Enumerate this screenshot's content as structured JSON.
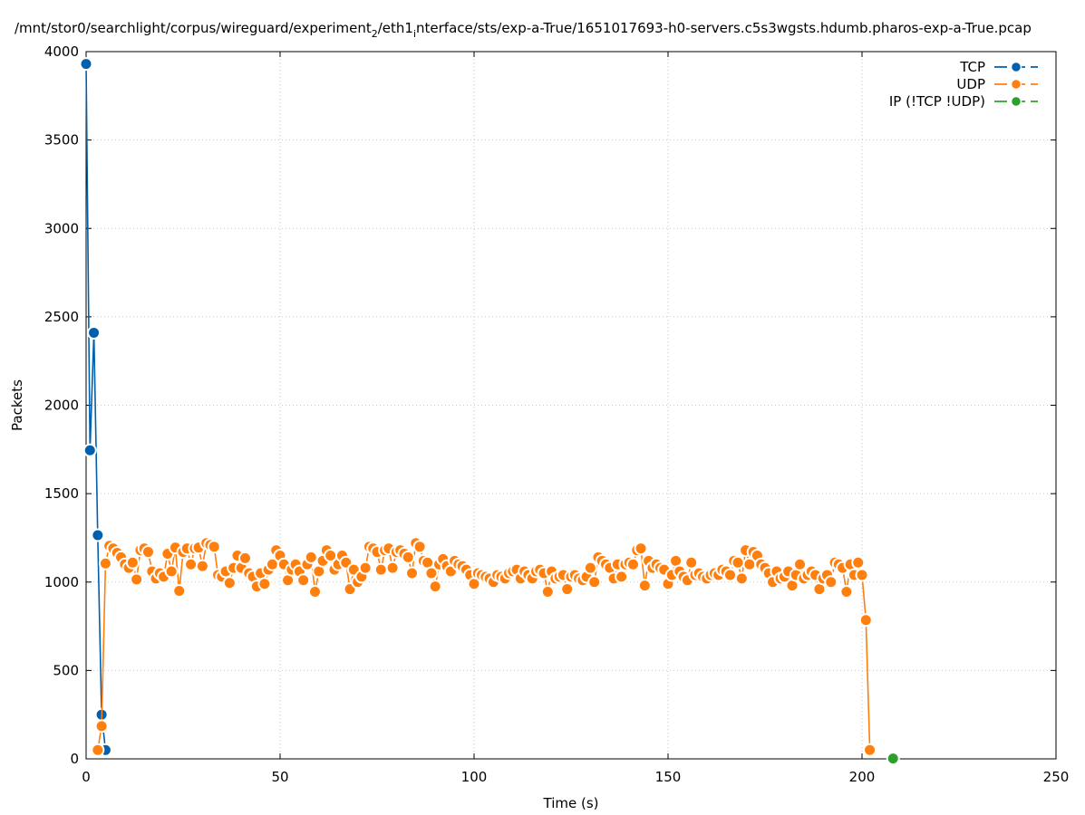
{
  "chart_data": {
    "type": "line",
    "title": "/mnt/stor0/searchlight/corpus/wireguard/experiment",
    "title_sub": "2",
    "title_mid": "/eth1",
    "title_sub2": "i",
    "title_rest": "nterface/sts/exp-a-True/1651017693-h0-servers.c5s3wgsts.hdumb.pharos-exp-a-True.pcap",
    "xlabel": "Time (s)",
    "ylabel": "Packets",
    "xlim": [
      0,
      250
    ],
    "ylim": [
      0,
      4000
    ],
    "xticks": [
      0,
      50,
      100,
      150,
      200,
      250
    ],
    "yticks": [
      0,
      500,
      1000,
      1500,
      2000,
      2500,
      3000,
      3500,
      4000
    ],
    "grid": true,
    "legend_position": "top-right",
    "series": [
      {
        "name": "TCP",
        "color": "#0060ad",
        "x": [
          0,
          1,
          2,
          3,
          4,
          5
        ],
        "y": [
          3930,
          1745,
          2410,
          1265,
          250,
          50
        ]
      },
      {
        "name": "UDP",
        "color": "#ff7f0e",
        "x": [
          3,
          4,
          5,
          6,
          7,
          8,
          9,
          10,
          11,
          12,
          13,
          14,
          15,
          16,
          17,
          18,
          19,
          20,
          21,
          22,
          23,
          24,
          25,
          26,
          27,
          28,
          29,
          30,
          31,
          32,
          33,
          34,
          35,
          36,
          37,
          38,
          39,
          40,
          41,
          42,
          43,
          44,
          45,
          46,
          47,
          48,
          49,
          50,
          51,
          52,
          53,
          54,
          55,
          56,
          57,
          58,
          59,
          60,
          61,
          62,
          63,
          64,
          65,
          66,
          67,
          68,
          69,
          70,
          71,
          72,
          73,
          74,
          75,
          76,
          77,
          78,
          79,
          80,
          81,
          82,
          83,
          84,
          85,
          86,
          87,
          88,
          89,
          90,
          91,
          92,
          93,
          94,
          95,
          96,
          97,
          98,
          99,
          100,
          101,
          102,
          103,
          104,
          105,
          106,
          107,
          108,
          109,
          110,
          111,
          112,
          113,
          114,
          115,
          116,
          117,
          118,
          119,
          120,
          121,
          122,
          123,
          124,
          125,
          126,
          127,
          128,
          129,
          130,
          131,
          132,
          133,
          134,
          135,
          136,
          137,
          138,
          139,
          140,
          141,
          142,
          143,
          144,
          145,
          146,
          147,
          148,
          149,
          150,
          151,
          152,
          153,
          154,
          155,
          156,
          157,
          158,
          159,
          160,
          161,
          162,
          163,
          164,
          165,
          166,
          167,
          168,
          169,
          170,
          171,
          172,
          173,
          174,
          175,
          176,
          177,
          178,
          179,
          180,
          181,
          182,
          183,
          184,
          185,
          186,
          187,
          188,
          189,
          190,
          191,
          192,
          193,
          194,
          195,
          196,
          197,
          198,
          199,
          200,
          201,
          202
        ],
        "y": [
          50,
          185,
          1105,
          1205,
          1190,
          1165,
          1140,
          1100,
          1080,
          1110,
          1015,
          1180,
          1190,
          1170,
          1060,
          1020,
          1050,
          1030,
          1160,
          1060,
          1195,
          950,
          1170,
          1190,
          1100,
          1190,
          1195,
          1090,
          1220,
          1210,
          1200,
          1040,
          1030,
          1060,
          995,
          1080,
          1150,
          1080,
          1135,
          1050,
          1030,
          975,
          1050,
          990,
          1070,
          1100,
          1180,
          1150,
          1100,
          1010,
          1070,
          1100,
          1060,
          1010,
          1100,
          1140,
          945,
          1060,
          1120,
          1180,
          1150,
          1070,
          1100,
          1150,
          1110,
          960,
          1070,
          1000,
          1030,
          1080,
          1200,
          1190,
          1170,
          1070,
          1180,
          1190,
          1080,
          1170,
          1180,
          1160,
          1140,
          1050,
          1220,
          1200,
          1120,
          1110,
          1050,
          975,
          1100,
          1130,
          1090,
          1060,
          1120,
          1100,
          1090,
          1070,
          1040,
          990,
          1050,
          1040,
          1030,
          1020,
          1000,
          1040,
          1030,
          1020,
          1050,
          1060,
          1070,
          1020,
          1060,
          1040,
          1020,
          1060,
          1070,
          1050,
          945,
          1060,
          1020,
          1030,
          1040,
          960,
          1030,
          1040,
          1020,
          1010,
          1030,
          1080,
          1000,
          1140,
          1120,
          1100,
          1080,
          1020,
          1100,
          1030,
          1100,
          1110,
          1100,
          1180,
          1190,
          980,
          1120,
          1080,
          1100,
          1080,
          1070,
          990,
          1040,
          1120,
          1060,
          1030,
          1010,
          1110,
          1040,
          1050,
          1030,
          1020,
          1040,
          1050,
          1040,
          1070,
          1060,
          1040,
          1120,
          1110,
          1020,
          1180,
          1100,
          1170,
          1150,
          1100,
          1080,
          1050,
          1000,
          1060,
          1020,
          1030,
          1060,
          980,
          1040,
          1100,
          1020,
          1040,
          1060,
          1040,
          960,
          1020,
          1040,
          1000,
          1110,
          1100,
          1080,
          945,
          1100,
          1040,
          1110,
          1040,
          785,
          50
        ]
      },
      {
        "name": "IP (!TCP  !UDP)",
        "color": "#2ca02c",
        "x": [
          208
        ],
        "y": [
          2
        ]
      }
    ]
  }
}
